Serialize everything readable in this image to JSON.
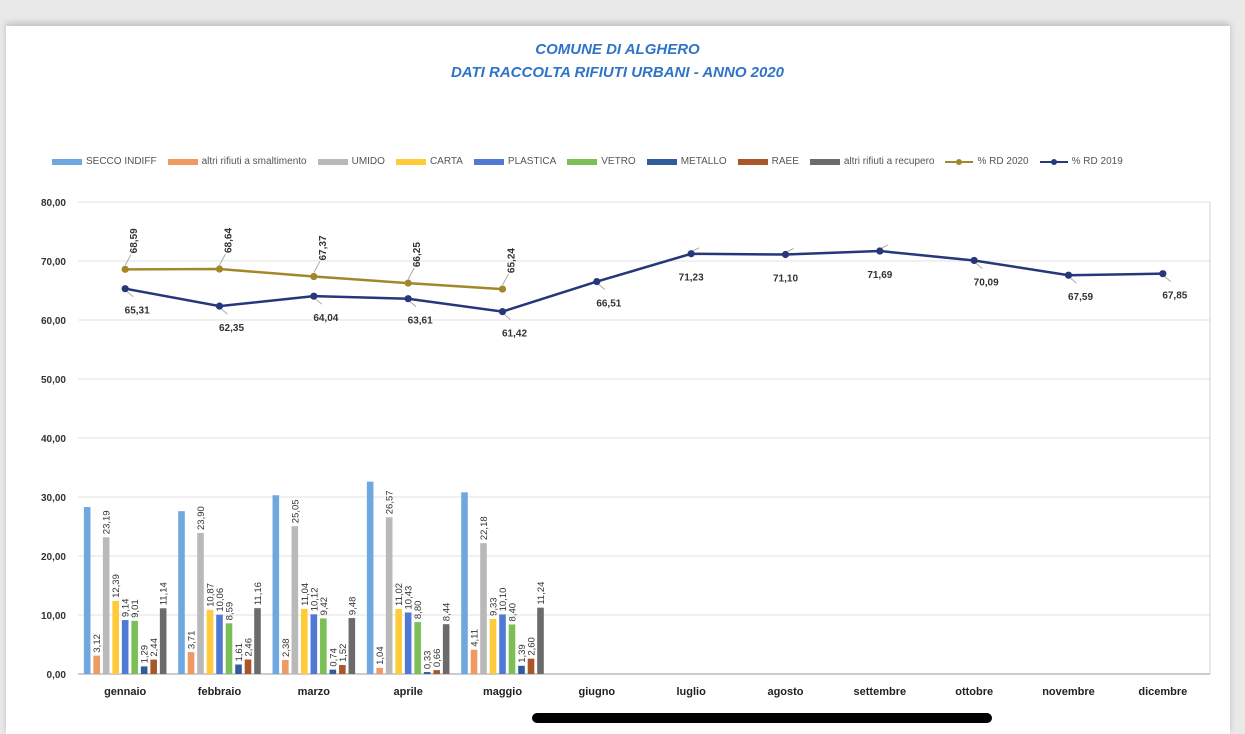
{
  "chart_data": {
    "type": "bar",
    "title": "COMUNE DI ALGHERO",
    "subtitle": "DATI RACCOLTA RIFIUTI URBANI -  ANNO 2020",
    "categories": [
      "gennaio",
      "febbraio",
      "marzo",
      "aprile",
      "maggio",
      "giugno",
      "luglio",
      "agosto",
      "settembre",
      "ottobre",
      "novembre",
      "dicembre"
    ],
    "y_ticks": [
      "0,00",
      "10,00",
      "20,00",
      "30,00",
      "40,00",
      "50,00",
      "60,00",
      "70,00",
      "80,00"
    ],
    "ylim": [
      0,
      80
    ],
    "grid": true,
    "legend_position": "top",
    "bar_series": [
      {
        "name": "SECCO INDIFF",
        "color": "#6fa8e0",
        "values": [
          28.3,
          27.6,
          30.3,
          32.6,
          30.8
        ],
        "labels": [
          "",
          "",
          "",
          "",
          ""
        ]
      },
      {
        "name": "altri rifiuti a smaltimento",
        "color": "#ee9a62",
        "values": [
          3.12,
          3.71,
          2.38,
          1.04,
          4.11
        ],
        "labels": [
          "3,12",
          "3,71",
          "2,38",
          "1,04",
          "4,11"
        ]
      },
      {
        "name": "UMIDO",
        "color": "#b9b9b9",
        "values": [
          23.19,
          23.9,
          25.05,
          26.57,
          22.18
        ],
        "labels": [
          "23,19",
          "23,90",
          "25,05",
          "26,57",
          "22,18"
        ]
      },
      {
        "name": "CARTA",
        "color": "#ffcb3a",
        "values": [
          12.39,
          10.87,
          11.04,
          11.02,
          9.33
        ],
        "labels": [
          "12,39",
          "10,87",
          "11,04",
          "11,02",
          "9,33"
        ]
      },
      {
        "name": "PLASTICA",
        "color": "#5079d4",
        "values": [
          9.14,
          10.06,
          10.12,
          10.43,
          10.1
        ],
        "labels": [
          "9,14",
          "10,06",
          "10,12",
          "10,43",
          "10,10"
        ]
      },
      {
        "name": "VETRO",
        "color": "#7cbf56",
        "values": [
          9.01,
          8.59,
          9.42,
          8.8,
          8.4
        ],
        "labels": [
          "9,01",
          "8,59",
          "9,42",
          "8,80",
          "8,40"
        ]
      },
      {
        "name": "METALLO",
        "color": "#2f5d9c",
        "values": [
          1.29,
          1.61,
          0.74,
          0.33,
          1.39
        ],
        "labels": [
          "1,29",
          "1,61",
          "0,74",
          "0,33",
          "1,39"
        ]
      },
      {
        "name": "RAEE",
        "color": "#a9562a",
        "values": [
          2.44,
          2.46,
          1.52,
          0.66,
          2.6
        ],
        "labels": [
          "2,44",
          "2,46",
          "1,52",
          "0,66",
          "2,60"
        ]
      },
      {
        "name": "altri rifiuti a recupero",
        "color": "#6b6b6b",
        "values": [
          11.14,
          11.16,
          9.48,
          8.44,
          11.24
        ],
        "labels": [
          "11,14",
          "11,16",
          "9,48",
          "8,44",
          "11,24"
        ]
      }
    ],
    "line_series": [
      {
        "name": "% RD 2020",
        "color": "#a2882a",
        "values": [
          68.59,
          68.64,
          67.37,
          66.25,
          65.24
        ],
        "labels": [
          "68,59",
          "68,64",
          "67,37",
          "66,25",
          "65,24"
        ]
      },
      {
        "name": "% RD 2019",
        "color": "#26377a",
        "values": [
          65.31,
          62.35,
          64.04,
          63.61,
          61.42,
          66.51,
          71.23,
          71.1,
          71.69,
          70.09,
          67.59,
          67.85
        ],
        "labels": [
          "65,31",
          "62,35",
          "64,04",
          "63,61",
          "61,42",
          "66,51",
          "71,23",
          "71,10",
          "71,69",
          "70,09",
          "67,59",
          "67,85"
        ]
      }
    ]
  }
}
